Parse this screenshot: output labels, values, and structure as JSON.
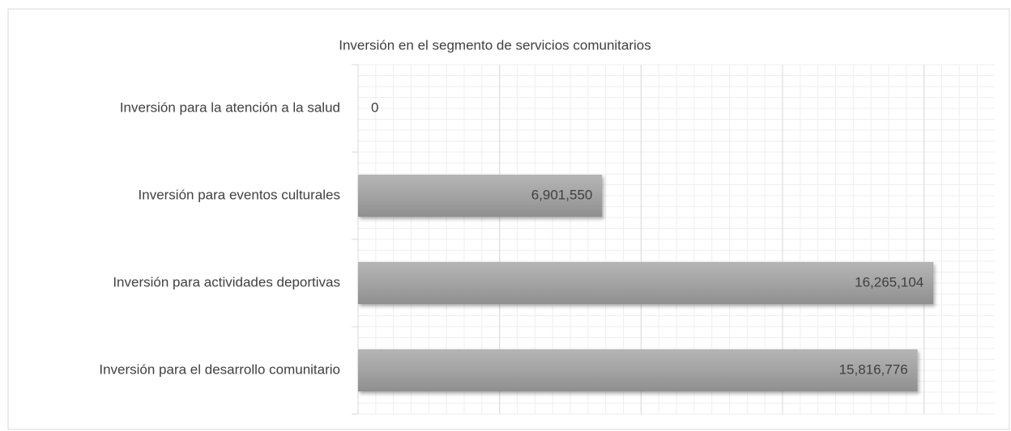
{
  "chart_data": {
    "type": "bar",
    "orientation": "horizontal",
    "title": "Inversión en el segmento de servicios comunitarios",
    "categories": [
      "Inversión para la atención a la salud",
      "Inversión para eventos culturales",
      "Inversión para actividades deportivas",
      "Inversión para el desarrollo comunitario"
    ],
    "values": [
      0,
      6901550,
      16265104,
      15816776
    ],
    "value_labels": [
      "0",
      "6,901,550",
      "16,265,104",
      "15,816,776"
    ],
    "color": "#a6a6a6",
    "xlim": [
      0,
      18000000
    ],
    "xticks": [
      0,
      4000000,
      8000000,
      12000000,
      16000000
    ],
    "grid": true
  }
}
